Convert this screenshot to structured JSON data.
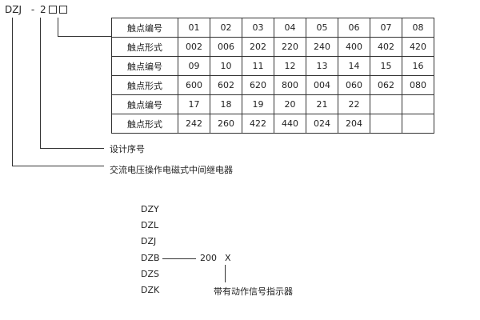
{
  "code": {
    "prefix": "DZJ",
    "dash": "-",
    "digit": "2"
  },
  "table": {
    "rows": [
      [
        "触点编号",
        "01",
        "02",
        "03",
        "04",
        "05",
        "06",
        "07",
        "08"
      ],
      [
        "触点形式",
        "002",
        "006",
        "202",
        "220",
        "240",
        "400",
        "402",
        "420"
      ],
      [
        "触点编号",
        "09",
        "10",
        "11",
        "12",
        "13",
        "14",
        "15",
        "16"
      ],
      [
        "触点形式",
        "600",
        "602",
        "620",
        "800",
        "004",
        "060",
        "062",
        "080"
      ],
      [
        "触点编号",
        "17",
        "18",
        "19",
        "20",
        "21",
        "22",
        "",
        ""
      ],
      [
        "触点形式",
        "242",
        "260",
        "422",
        "440",
        "024",
        "204",
        "",
        ""
      ]
    ]
  },
  "labels": {
    "design": "设计序号",
    "type": "交流电压操作电磁式中间继电器"
  },
  "models": [
    "DZY",
    "DZL",
    "DZJ",
    "DZB",
    "DZS",
    "DZK"
  ],
  "suffix": {
    "code": "200",
    "x": "X",
    "note": "带有动作信号指示器"
  }
}
